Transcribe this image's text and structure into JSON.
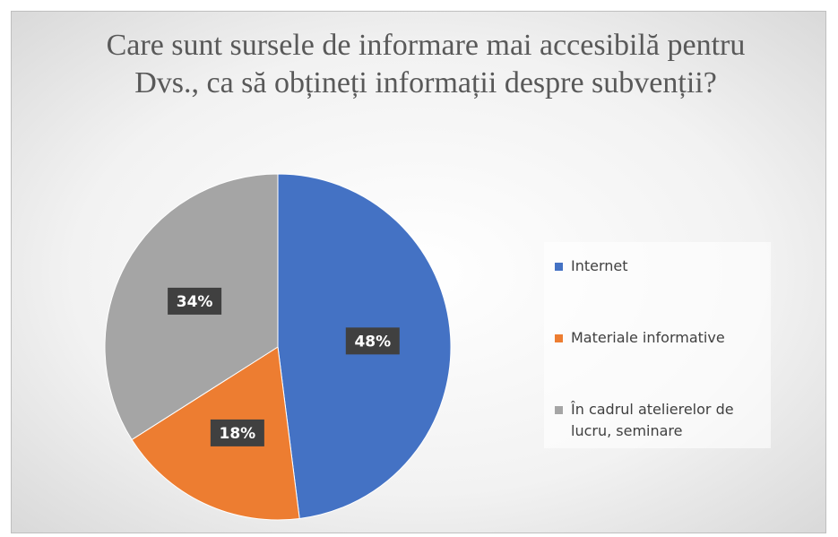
{
  "chart_data": {
    "type": "pie",
    "title": "Care sunt sursele de informare  mai accesibilă pentru Dvs., ca să obțineți informații  despre subvenții?",
    "categories": [
      "Internet",
      "Materiale informative",
      "În cadrul atelierelor de lucru, seminare"
    ],
    "values": [
      48,
      18,
      34
    ],
    "value_labels": [
      "48%",
      "18%",
      "34%"
    ],
    "colors": [
      "#4472c4",
      "#ed7d31",
      "#a5a5a5"
    ],
    "legend": "right"
  }
}
